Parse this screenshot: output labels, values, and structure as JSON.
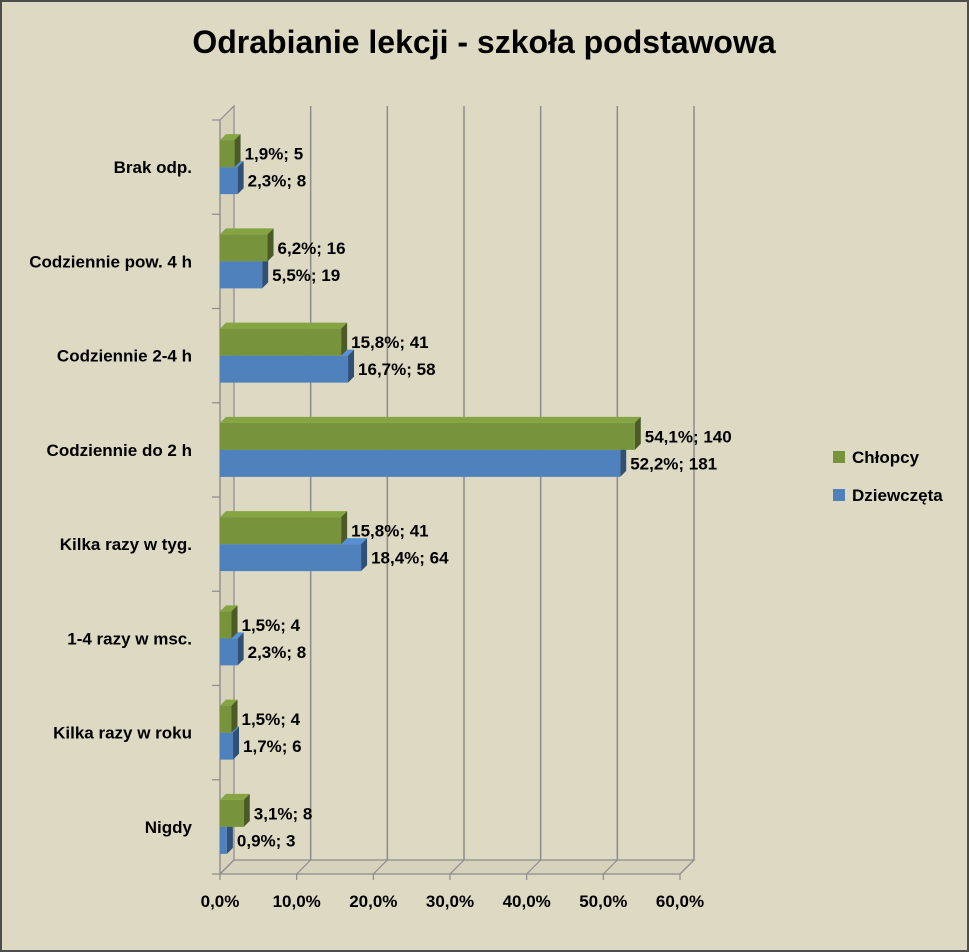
{
  "chart_data": {
    "type": "bar",
    "orientation": "horizontal",
    "title": "Odrabianie lekcji - szkoła podstawowa",
    "categories": [
      "Brak odp.",
      "Codziennie pow. 4 h",
      "Codziennie 2-4 h",
      "Codziennie do 2 h",
      "Kilka razy w tyg.",
      "1-4 razy w msc.",
      "Kilka razy w roku",
      "Nigdy"
    ],
    "series": [
      {
        "name": "Chłopcy",
        "color": "#77933c",
        "values": [
          1.9,
          6.2,
          15.8,
          54.1,
          15.8,
          1.5,
          1.5,
          3.1
        ],
        "labels": [
          "1,9%; 5",
          "6,2%; 16",
          "15,8%; 41",
          "54,1%; 140",
          "15,8%; 41",
          "1,5%; 4",
          "1,5%; 4",
          "3,1%; 8"
        ]
      },
      {
        "name": "Dziewczęta",
        "color": "#4f81bd",
        "values": [
          2.3,
          5.5,
          16.7,
          52.2,
          18.4,
          2.3,
          1.7,
          0.9
        ],
        "labels": [
          "2,3%; 8",
          "5,5%; 19",
          "16,7%; 58",
          "52,2%; 181",
          "18,4%; 64",
          "2,3%; 8",
          "1,7%; 6",
          "0,9%; 3"
        ]
      }
    ],
    "xlim": [
      0,
      60
    ],
    "xticks": [
      0,
      10,
      20,
      30,
      40,
      50,
      60
    ],
    "xtick_labels": [
      "0,0%",
      "10,0%",
      "20,0%",
      "30,0%",
      "40,0%",
      "50,0%",
      "60,0%"
    ],
    "grid": true,
    "legend_position": "right"
  }
}
